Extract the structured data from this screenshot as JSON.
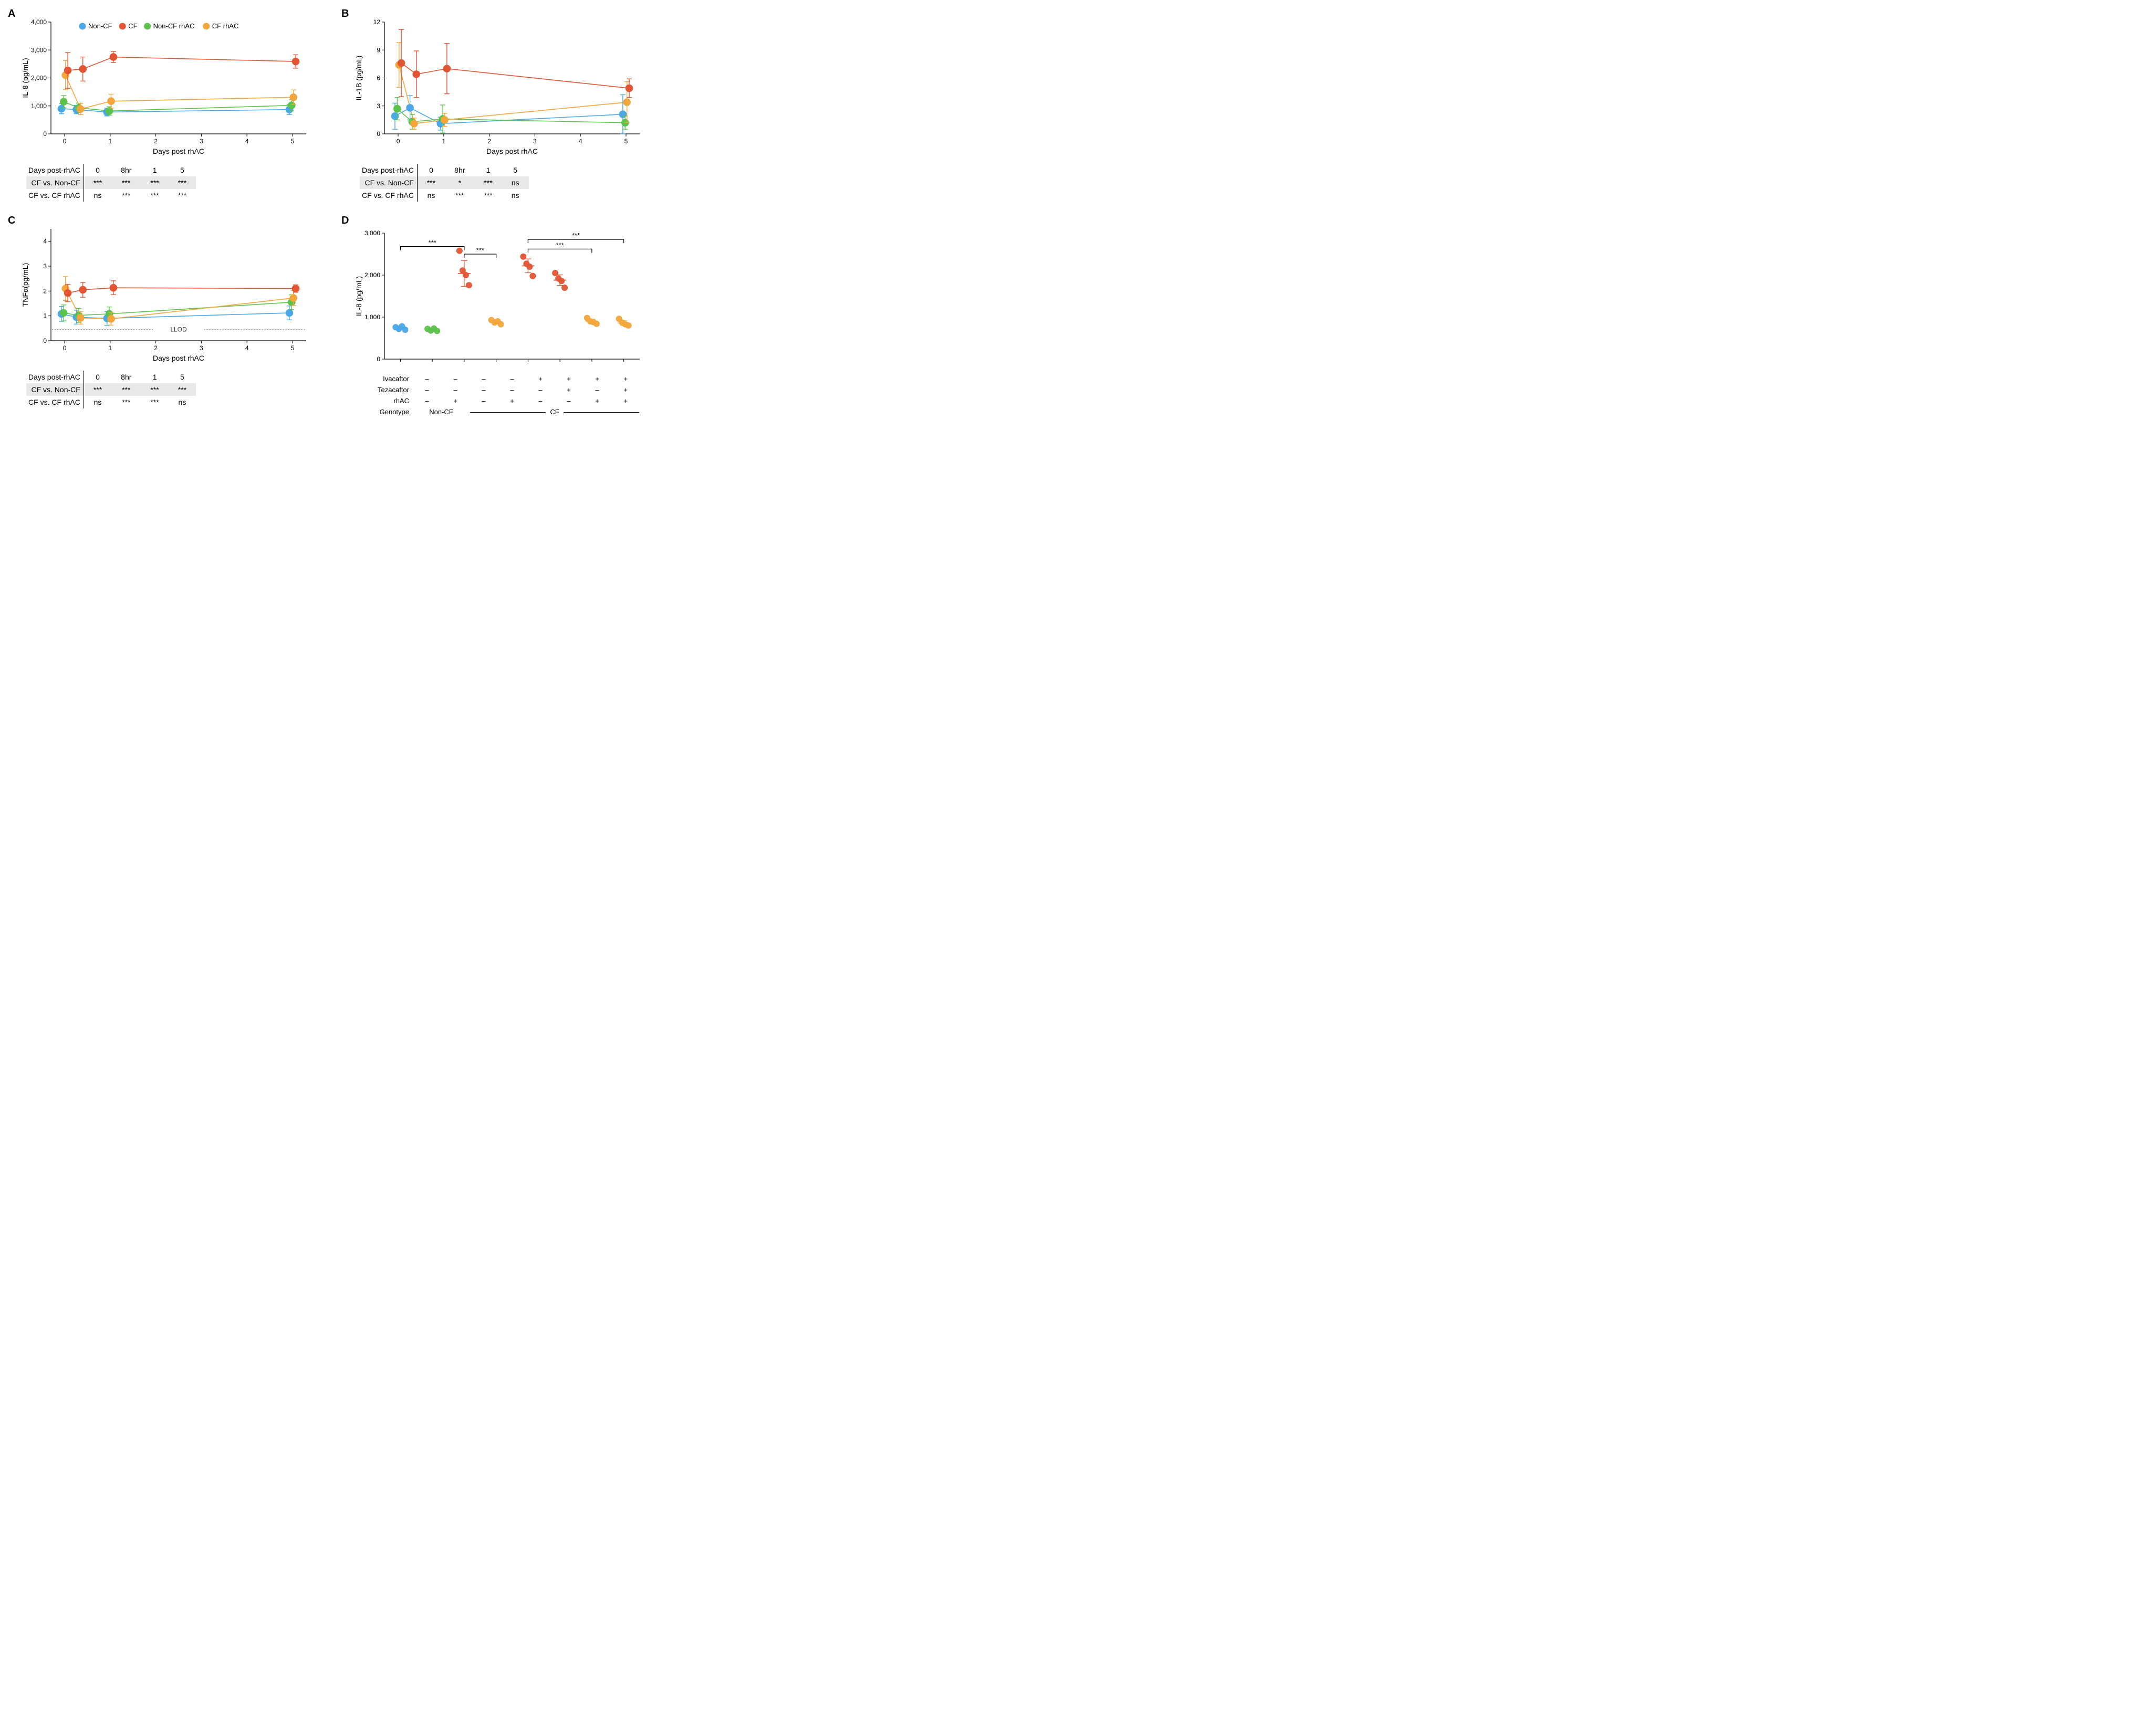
{
  "colors": {
    "nonCF": "#4aa8e8",
    "CF": "#e15534",
    "nonCF_rhAC": "#5bc24a",
    "CF_rhAC": "#f2a63b",
    "axis": "#000000",
    "llod": "#666666",
    "sigbar": "#000000"
  },
  "legend": {
    "items": [
      {
        "label": "Non-CF",
        "color": "#4aa8e8"
      },
      {
        "label": "CF",
        "color": "#e15534"
      },
      {
        "label": "Non-CF rhAC",
        "color": "#5bc24a"
      },
      {
        "label": "CF rhAC",
        "color": "#f2a63b"
      }
    ]
  },
  "panelA": {
    "label": "A",
    "ylabel": "IL-8 (pg/mL)",
    "xlabel": "Days post rhAC",
    "ylim": [
      0,
      4000
    ],
    "yticks": [
      0,
      1000,
      2000,
      3000,
      4000
    ],
    "yticklabels": [
      "0",
      "1,000",
      "2,000",
      "3,000",
      "4,000"
    ],
    "xlim": [
      -0.3,
      5.3
    ],
    "xticks": [
      0,
      1,
      2,
      3,
      4,
      5
    ],
    "series": {
      "nonCF": [
        {
          "x": 0,
          "y": 900,
          "e": 180
        },
        {
          "x": 0.33,
          "y": 870,
          "e": 150
        },
        {
          "x": 1,
          "y": 780,
          "e": 140
        },
        {
          "x": 5,
          "y": 870,
          "e": 180
        }
      ],
      "CF": [
        {
          "x": 0,
          "y": 2270,
          "e": 640
        },
        {
          "x": 0.33,
          "y": 2320,
          "e": 430
        },
        {
          "x": 1,
          "y": 2750,
          "e": 200
        },
        {
          "x": 5,
          "y": 2590,
          "e": 240
        }
      ],
      "nonCF_rhAC": [
        {
          "x": 0,
          "y": 1150,
          "e": 220
        },
        {
          "x": 0.33,
          "y": 930,
          "e": 170
        },
        {
          "x": 1,
          "y": 820,
          "e": 150
        },
        {
          "x": 5,
          "y": 1020,
          "e": 200
        }
      ],
      "CF_rhAC": [
        {
          "x": 0,
          "y": 2100,
          "e": 520
        },
        {
          "x": 0.33,
          "y": 890,
          "e": 200
        },
        {
          "x": 1,
          "y": 1170,
          "e": 250
        },
        {
          "x": 5,
          "y": 1310,
          "e": 260
        }
      ]
    },
    "stats": {
      "header": [
        "Days post-rhAC",
        "0",
        "8hr",
        "1",
        "5"
      ],
      "rows": [
        [
          "CF vs. Non-CF",
          "***",
          "***",
          "***",
          "***"
        ],
        [
          "CF vs. CF rhAC",
          "ns",
          "***",
          "***",
          "***"
        ]
      ]
    }
  },
  "panelB": {
    "label": "B",
    "ylabel": "IL-1B (pg/mL)",
    "xlabel": "Days post rhAC",
    "ylim": [
      0,
      12
    ],
    "yticks": [
      0,
      3,
      6,
      9,
      12
    ],
    "yticklabels": [
      "0",
      "3",
      "6",
      "9",
      "12"
    ],
    "xlim": [
      -0.3,
      5.3
    ],
    "xticks": [
      0,
      1,
      2,
      3,
      4,
      5
    ],
    "series": {
      "nonCF": [
        {
          "x": 0,
          "y": 1.9,
          "e": 1.4
        },
        {
          "x": 0.33,
          "y": 2.8,
          "e": 1.3
        },
        {
          "x": 1,
          "y": 1.1,
          "e": 0.7
        },
        {
          "x": 5,
          "y": 2.1,
          "e": 2.1
        }
      ],
      "CF": [
        {
          "x": 0,
          "y": 7.6,
          "e": 3.6
        },
        {
          "x": 0.33,
          "y": 6.4,
          "e": 2.5
        },
        {
          "x": 1,
          "y": 7.0,
          "e": 2.7
        },
        {
          "x": 5,
          "y": 4.9,
          "e": 1.0
        }
      ],
      "nonCF_rhAC": [
        {
          "x": 0,
          "y": 2.7,
          "e": 1.2
        },
        {
          "x": 0.33,
          "y": 1.3,
          "e": 0.8
        },
        {
          "x": 1,
          "y": 1.6,
          "e": 1.5
        },
        {
          "x": 5,
          "y": 1.2,
          "e": 0.7
        }
      ],
      "CF_rhAC": [
        {
          "x": 0,
          "y": 7.4,
          "e": 2.4
        },
        {
          "x": 0.33,
          "y": 1.1,
          "e": 0.6
        },
        {
          "x": 1,
          "y": 1.5,
          "e": 0.7
        },
        {
          "x": 5,
          "y": 3.4,
          "e": 2.2
        }
      ]
    },
    "stats": {
      "header": [
        "Days post-rhAC",
        "0",
        "8hr",
        "1",
        "5"
      ],
      "rows": [
        [
          "CF vs. Non-CF",
          "***",
          "*",
          "***",
          "ns"
        ],
        [
          "CF vs. CF rhAC",
          "ns",
          "***",
          "***",
          "ns"
        ]
      ]
    }
  },
  "panelC": {
    "label": "C",
    "ylabel": "TNFα(pg/mL)",
    "xlabel": "Days post rhAC",
    "ylim": [
      0,
      4.5
    ],
    "yticks": [
      0,
      1,
      2,
      3,
      4
    ],
    "yticklabels": [
      "0",
      "1",
      "2",
      "3",
      "4"
    ],
    "xlim": [
      -0.3,
      5.3
    ],
    "xticks": [
      0,
      1,
      2,
      3,
      4,
      5
    ],
    "llod": {
      "y": 0.45,
      "label": "LLOD"
    },
    "series": {
      "nonCF": [
        {
          "x": 0,
          "y": 1.08,
          "e": 0.3
        },
        {
          "x": 0.33,
          "y": 0.95,
          "e": 0.28
        },
        {
          "x": 1,
          "y": 0.9,
          "e": 0.28
        },
        {
          "x": 5,
          "y": 1.12,
          "e": 0.28
        }
      ],
      "CF": [
        {
          "x": 0,
          "y": 1.92,
          "e": 0.35
        },
        {
          "x": 0.33,
          "y": 2.05,
          "e": 0.3
        },
        {
          "x": 1,
          "y": 2.13,
          "e": 0.28
        },
        {
          "x": 5,
          "y": 2.1,
          "e": 0.15
        }
      ],
      "nonCF_rhAC": [
        {
          "x": 0,
          "y": 1.12,
          "e": 0.32
        },
        {
          "x": 0.33,
          "y": 1.02,
          "e": 0.28
        },
        {
          "x": 1,
          "y": 1.08,
          "e": 0.28
        },
        {
          "x": 5,
          "y": 1.55,
          "e": 0.3
        }
      ],
      "CF_rhAC": [
        {
          "x": 0,
          "y": 2.1,
          "e": 0.48
        },
        {
          "x": 0.33,
          "y": 0.92,
          "e": 0.25
        },
        {
          "x": 1,
          "y": 0.88,
          "e": 0.25
        },
        {
          "x": 5,
          "y": 1.72,
          "e": 0.3
        }
      ]
    },
    "stats": {
      "header": [
        "Days post-rhAC",
        "0",
        "8hr",
        "1",
        "5"
      ],
      "rows": [
        [
          "CF vs. Non-CF",
          "***",
          "***",
          "***",
          "***"
        ],
        [
          "CF vs. CF rhAC",
          "ns",
          "***",
          "***",
          "ns"
        ]
      ]
    }
  },
  "panelD": {
    "label": "D",
    "ylabel": "IL-8 (pg/mL)",
    "ylim": [
      0,
      3000
    ],
    "yticks": [
      0,
      1000,
      2000,
      3000
    ],
    "yticklabels": [
      "0",
      "1,000",
      "2,000",
      "3,000"
    ],
    "groups": [
      {
        "color": "#4aa8e8",
        "mean": 740,
        "points": [
          760,
          720,
          780,
          700
        ]
      },
      {
        "color": "#5bc24a",
        "mean": 700,
        "points": [
          720,
          680,
          730,
          670
        ]
      },
      {
        "color": "#e15534",
        "mean": 2040,
        "points": [
          2580,
          2110,
          2000,
          1760
        ]
      },
      {
        "color": "#f2a63b",
        "mean": 880,
        "points": [
          930,
          870,
          900,
          830
        ]
      },
      {
        "color": "#e15534",
        "mean": 2220,
        "points": [
          2440,
          2270,
          2200,
          1980
        ]
      },
      {
        "color": "#e15534",
        "mean": 1880,
        "points": [
          2050,
          1920,
          1860,
          1700
        ]
      },
      {
        "color": "#f2a63b",
        "mean": 900,
        "points": [
          980,
          900,
          880,
          840
        ]
      },
      {
        "color": "#f2a63b",
        "mean": 860,
        "points": [
          960,
          870,
          830,
          800
        ]
      }
    ],
    "sig": [
      {
        "from": 0,
        "to": 2,
        "y": 2680,
        "label": "***"
      },
      {
        "from": 2,
        "to": 3,
        "y": 2500,
        "label": "***"
      },
      {
        "from": 4,
        "to": 6,
        "y": 2620,
        "label": "***"
      },
      {
        "from": 4,
        "to": 7,
        "y": 2850,
        "label": "***"
      }
    ],
    "treatments": {
      "rows": [
        {
          "label": "Ivacaftor",
          "vals": [
            "–",
            "–",
            "–",
            "–",
            "+",
            "+",
            "+",
            "+"
          ]
        },
        {
          "label": "Tezacaftor",
          "vals": [
            "–",
            "–",
            "–",
            "–",
            "–",
            "+",
            "–",
            "+"
          ]
        },
        {
          "label": "rhAC",
          "vals": [
            "–",
            "+",
            "–",
            "+",
            "–",
            "–",
            "+",
            "+"
          ]
        }
      ],
      "genotype": {
        "label": "Genotype",
        "noncf": "Non-CF",
        "cf": "CF"
      }
    }
  },
  "style": {
    "marker_r": 6.5,
    "marker_stroke": 1.6,
    "line_w": 1.6,
    "err_cap": 5,
    "axis_fontsize": 13,
    "label_fontsize": 14,
    "tick_fontsize": 12
  }
}
